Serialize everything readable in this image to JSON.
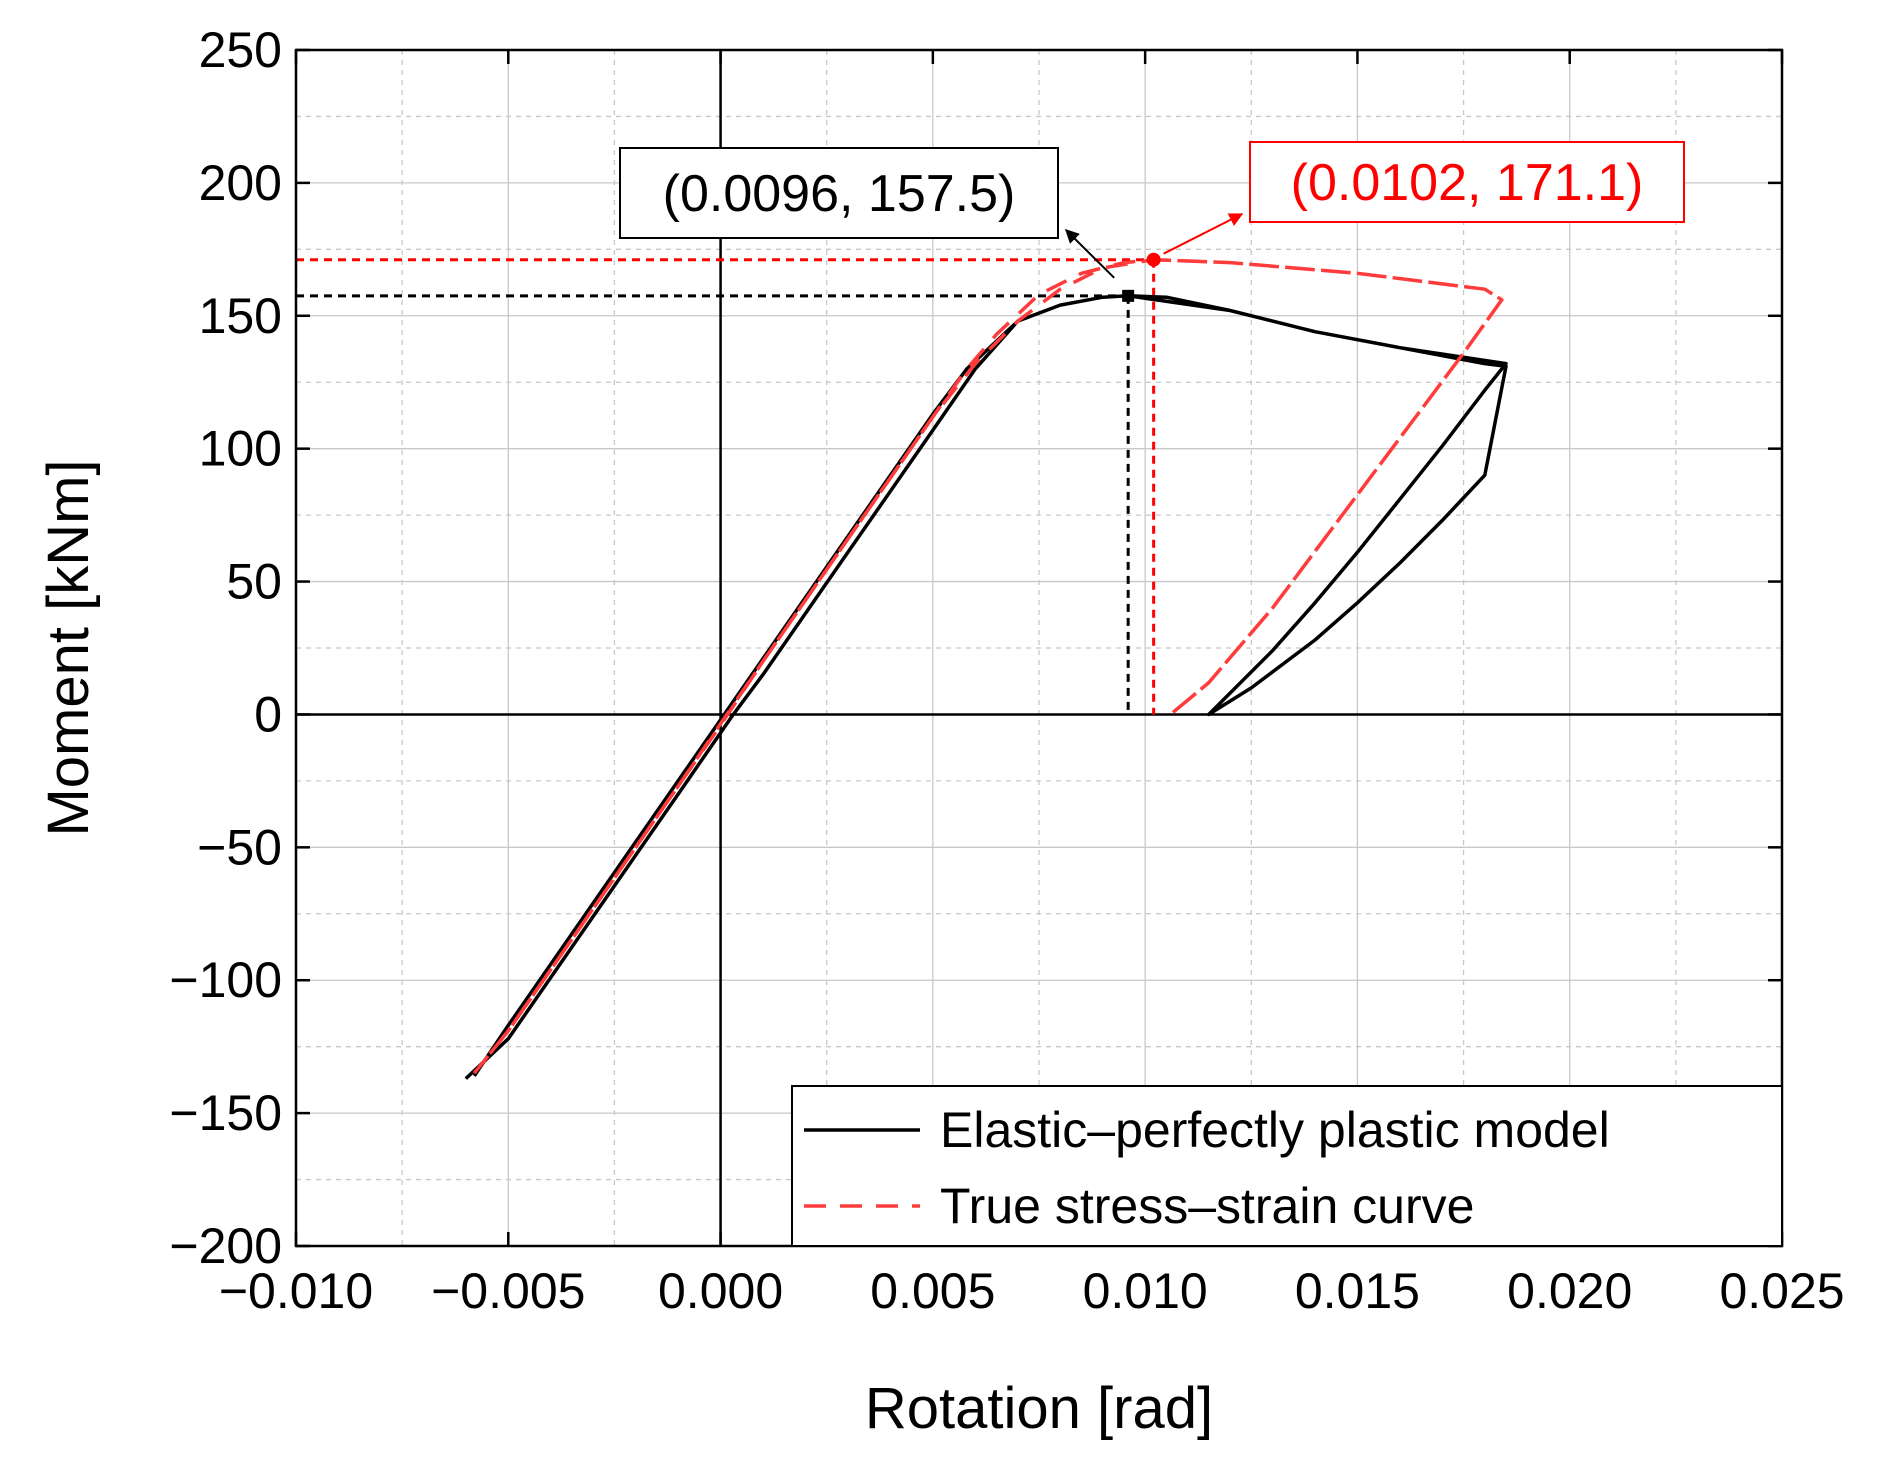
{
  "chart_data": {
    "type": "line",
    "xlabel": "Rotation [rad]",
    "ylabel": "Moment [kNm]",
    "xlim": [
      -0.01,
      0.025
    ],
    "ylim": [
      -200,
      250
    ],
    "x_ticks": [
      -0.01,
      -0.005,
      0.0,
      0.005,
      0.01,
      0.015,
      0.02,
      0.025
    ],
    "x_tick_labels": [
      "−0.010",
      "−0.005",
      "0.000",
      "0.005",
      "0.010",
      "0.015",
      "0.020",
      "0.025"
    ],
    "y_ticks": [
      -200,
      -150,
      -100,
      -50,
      0,
      50,
      100,
      150,
      200,
      250
    ],
    "y_tick_labels": [
      "−200",
      "−150",
      "−100",
      "−50",
      "0",
      "50",
      "100",
      "150",
      "200",
      "250"
    ],
    "grid": true,
    "legend_position": "bottom-right",
    "series": [
      {
        "name": "Elastic–perfectly plastic model",
        "color": "#000000",
        "dash": "solid",
        "x": [
          -0.0058,
          -0.005,
          -0.003,
          -0.001,
          0.0,
          0.001,
          0.003,
          0.005,
          0.0058,
          0.006,
          0.007,
          0.008,
          0.009,
          0.0096,
          0.0105,
          0.012,
          0.014,
          0.016,
          0.0185,
          0.018,
          0.017,
          0.016,
          0.015,
          0.014,
          0.013,
          0.0115,
          0.0125,
          0.014,
          0.015,
          0.016,
          0.017,
          0.018,
          0.0185,
          0.018,
          0.016,
          0.014,
          0.012,
          0.0096,
          0.009,
          0.008,
          0.007,
          0.006,
          0.005,
          0.003,
          0.001,
          0.0003,
          -0.001,
          -0.003,
          -0.005,
          -0.006
        ],
        "y": [
          -136,
          -117,
          -71,
          -25,
          -2,
          21,
          67,
          113,
          130,
          133,
          148,
          154,
          157,
          157.5,
          157,
          152,
          144,
          138,
          132,
          122,
          101,
          81,
          61,
          42,
          24,
          0,
          10,
          28,
          42,
          57,
          73,
          90,
          131,
          132,
          138,
          144,
          152,
          157.5,
          157,
          154,
          148,
          130,
          107,
          61,
          15,
          0,
          -30,
          -76,
          -122,
          -137
        ]
      },
      {
        "name": "True stress–strain curve",
        "color": "#ff3b3b",
        "dash": "dashed",
        "x": [
          -0.0058,
          -0.005,
          -0.003,
          -0.001,
          0.0,
          0.001,
          0.003,
          0.005,
          0.0058,
          0.0065,
          0.0075,
          0.0085,
          0.0095,
          0.0102,
          0.012,
          0.015,
          0.018,
          0.0184,
          0.0175,
          0.016,
          0.0145,
          0.013,
          0.0115,
          0.0106,
          0.0115,
          0.013,
          0.0145,
          0.016,
          0.0175,
          0.0184,
          0.018,
          0.015,
          0.012,
          0.0102,
          0.009,
          0.008,
          0.007,
          0.006,
          0.005,
          0.003,
          0.001,
          -0.001,
          -0.003,
          -0.005,
          -0.0058
        ],
        "y": [
          -135,
          -119,
          -73,
          -27,
          -4,
          20,
          66,
          112,
          130,
          143,
          158,
          166,
          170,
          171.1,
          170,
          166,
          160,
          156,
          136,
          104,
          72,
          40,
          12,
          0,
          12,
          40,
          72,
          104,
          136,
          156,
          160,
          166,
          170,
          171.1,
          168,
          160,
          148,
          132,
          112,
          66,
          20,
          -27,
          -73,
          -119,
          -135
        ]
      }
    ],
    "annotations": [
      {
        "text": "(0.0096, 157.5)",
        "x": 0.0096,
        "y": 157.5,
        "color": "#000000"
      },
      {
        "text": "(0.0102, 171.1)",
        "x": 0.0102,
        "y": 171.1,
        "color": "#ff0000"
      }
    ]
  }
}
